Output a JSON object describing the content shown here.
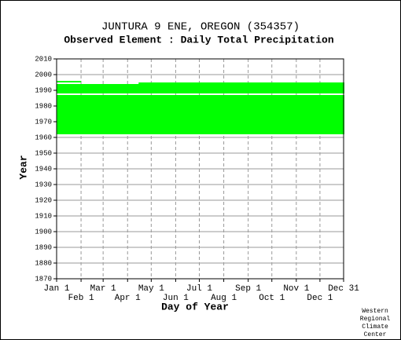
{
  "chart_data": {
    "type": "availability",
    "title": "JUNTURA 9 ENE, OREGON   (354357)",
    "subtitle": "Observed Element : Daily Total Precipitation",
    "x_label": "Day of Year",
    "y_label": "Year",
    "credit": [
      "Western",
      "Regional",
      "Climate",
      "Center"
    ],
    "color": "#00ff00",
    "grid": true,
    "xlim": [
      1,
      365
    ],
    "xticks": [
      {
        "value": 1,
        "label": "Jan 1"
      },
      {
        "value": 32,
        "label": "Feb 1"
      },
      {
        "value": 60,
        "label": "Mar 1"
      },
      {
        "value": 91,
        "label": "Apr 1"
      },
      {
        "value": 121,
        "label": "May 1"
      },
      {
        "value": 152,
        "label": "Jun 1"
      },
      {
        "value": 182,
        "label": "Jul 1"
      },
      {
        "value": 213,
        "label": "Aug 1"
      },
      {
        "value": 244,
        "label": "Sep 1"
      },
      {
        "value": 274,
        "label": "Oct 1"
      },
      {
        "value": 305,
        "label": "Nov 1"
      },
      {
        "value": 335,
        "label": "Dec 1"
      },
      {
        "value": 365,
        "label": "Dec 31"
      }
    ],
    "ylim": [
      1870,
      2010
    ],
    "yticks": [
      1870,
      1880,
      1890,
      1900,
      1910,
      1920,
      1930,
      1940,
      1950,
      1960,
      1970,
      1980,
      1990,
      2000,
      2010
    ],
    "bands": [
      {
        "years": [
          1962,
          1985
        ],
        "days": [
          1,
          365
        ]
      },
      {
        "years": [
          1986,
          1986
        ],
        "days": [
          1,
          365
        ]
      },
      {
        "years": [
          1988,
          1993
        ],
        "days": [
          1,
          365
        ]
      },
      {
        "years": [
          1994,
          1994
        ],
        "days": [
          105,
          365
        ]
      },
      {
        "years": [
          1995,
          1995
        ],
        "days": [
          1,
          31
        ]
      }
    ]
  }
}
